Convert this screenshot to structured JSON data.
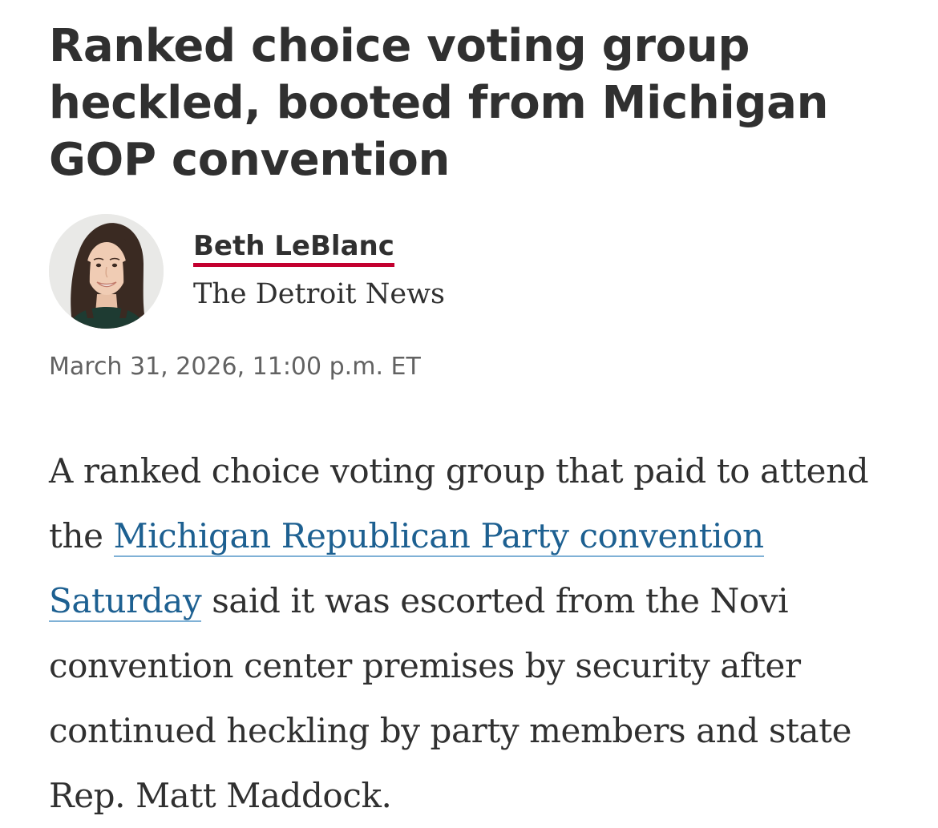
{
  "article": {
    "headline": "Ranked choice voting group heckled, booted from Michigan GOP convention",
    "author": {
      "name": "Beth LeBlanc",
      "publication": "The Detroit News",
      "avatar_icon": "author-portrait"
    },
    "dateline": "March 31, 2026, 11:00 p.m. ET",
    "body": {
      "before_link": "A ranked choice voting group that paid to attend the ",
      "link_text": "Michigan Republican Party convention Saturday",
      "after_link": " said it was escorted from the Novi convention center premises by security after continued heckling by party members and state Rep. Matt Maddock."
    }
  },
  "colors": {
    "text": "#303030",
    "meta": "#626262",
    "author_underline": "#c3002f",
    "link": "#1d6091",
    "link_underline": "#7fb1d6"
  }
}
